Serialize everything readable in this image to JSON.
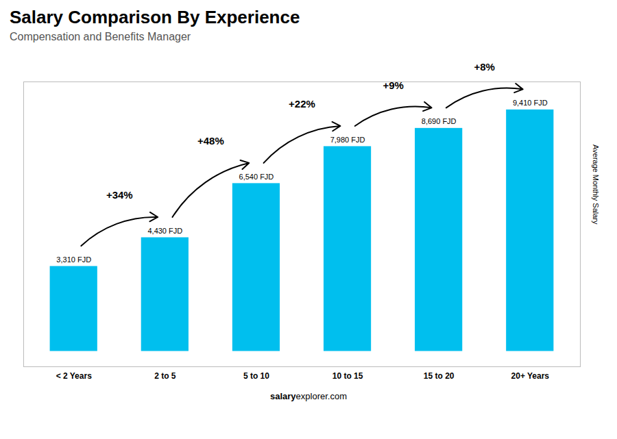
{
  "chart_data": {
    "type": "bar",
    "title": "Salary Comparison By Experience",
    "subtitle": "Compensation and Benefits Manager",
    "ylabel": "Average Monthly Salary",
    "categories": [
      "< 2 Years",
      "2 to 5",
      "5 to 10",
      "10 to 15",
      "15 to 20",
      "20+ Years"
    ],
    "values": [
      3310,
      4430,
      6540,
      7980,
      8690,
      9410
    ],
    "value_labels": [
      "3,310 FJD",
      "4,430 FJD",
      "6,540 FJD",
      "7,980 FJD",
      "8,690 FJD",
      "9,410 FJD"
    ],
    "data_labels": true,
    "changes": [
      34,
      48,
      22,
      9,
      8
    ],
    "change_labels": [
      "+34%",
      "+48%",
      "+22%",
      "+9%",
      "+8%"
    ],
    "annotations": [
      "salary",
      "explorer.com"
    ],
    "color": "#00BFEE",
    "ylim": [
      -600,
      10500
    ],
    "tick_labels": "x",
    "grid": false
  }
}
